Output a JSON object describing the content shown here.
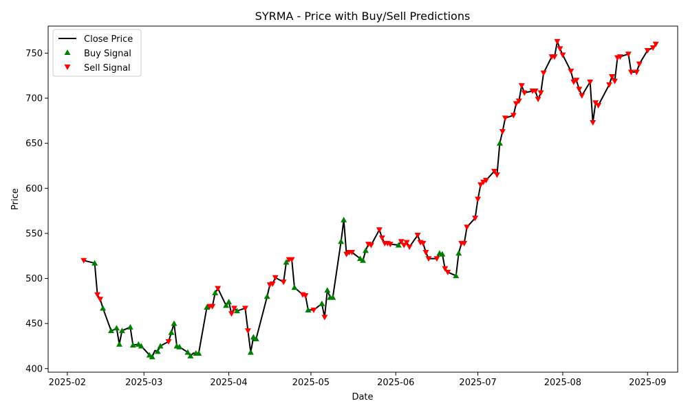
{
  "chart_data": {
    "type": "line",
    "title": "SYRMA - Price with Buy/Sell Predictions",
    "xlabel": "Date",
    "ylabel": "Price",
    "x_ticks": [
      "2025-02",
      "2025-03",
      "2025-04",
      "2025-05",
      "2025-06",
      "2025-07",
      "2025-08",
      "2025-09"
    ],
    "y_ticks": [
      400,
      450,
      500,
      550,
      600,
      650,
      700,
      750
    ],
    "xlim": [
      "2025-01-25",
      "2025-09-12"
    ],
    "ylim": [
      396,
      780
    ],
    "grid": false,
    "legend_position": "upper-left",
    "legend": {
      "close": "Close Price",
      "buy": "Buy Signal",
      "sell": "Sell Signal"
    },
    "colors": {
      "close": "#000000",
      "buy": "#008000",
      "sell": "#ff0000"
    },
    "series": [
      {
        "name": "Close Price",
        "points": [
          [
            "2025-02-07",
            520
          ],
          [
            "2025-02-11",
            517
          ],
          [
            "2025-02-12",
            482
          ],
          [
            "2025-02-13",
            477
          ],
          [
            "2025-02-14",
            467
          ],
          [
            "2025-02-17",
            442
          ],
          [
            "2025-02-18",
            443
          ],
          [
            "2025-02-19",
            445
          ],
          [
            "2025-02-20",
            427
          ],
          [
            "2025-02-21",
            442
          ],
          [
            "2025-02-24",
            446
          ],
          [
            "2025-02-25",
            426
          ],
          [
            "2025-02-27",
            427
          ],
          [
            "2025-02-28",
            425
          ],
          [
            "2025-03-03",
            415
          ],
          [
            "2025-03-04",
            413
          ],
          [
            "2025-03-05",
            420
          ],
          [
            "2025-03-06",
            419
          ],
          [
            "2025-03-07",
            425
          ],
          [
            "2025-03-10",
            430
          ],
          [
            "2025-03-11",
            440
          ],
          [
            "2025-03-12",
            450
          ],
          [
            "2025-03-13",
            425
          ],
          [
            "2025-03-14",
            424
          ],
          [
            "2025-03-17",
            418
          ],
          [
            "2025-03-18",
            414
          ],
          [
            "2025-03-19",
            417
          ],
          [
            "2025-03-20",
            417
          ],
          [
            "2025-03-21",
            417
          ],
          [
            "2025-03-24",
            468
          ],
          [
            "2025-03-25",
            469
          ],
          [
            "2025-03-26",
            469
          ],
          [
            "2025-03-27",
            484
          ],
          [
            "2025-03-28",
            489
          ],
          [
            "2025-03-31",
            470
          ],
          [
            "2025-04-01",
            474
          ],
          [
            "2025-04-02",
            461
          ],
          [
            "2025-04-03",
            467
          ],
          [
            "2025-04-04",
            464
          ],
          [
            "2025-04-07",
            467
          ],
          [
            "2025-04-08",
            442
          ],
          [
            "2025-04-09",
            418
          ],
          [
            "2025-04-10",
            435
          ],
          [
            "2025-04-11",
            433
          ],
          [
            "2025-04-15",
            480
          ],
          [
            "2025-04-16",
            493
          ],
          [
            "2025-04-17",
            494
          ],
          [
            "2025-04-18",
            501
          ],
          [
            "2025-04-21",
            496
          ],
          [
            "2025-04-22",
            518
          ],
          [
            "2025-04-23",
            521
          ],
          [
            "2025-04-24",
            521
          ],
          [
            "2025-04-25",
            490
          ],
          [
            "2025-04-28",
            482
          ],
          [
            "2025-04-29",
            481
          ],
          [
            "2025-04-30",
            465
          ],
          [
            "2025-05-02",
            465
          ],
          [
            "2025-05-05",
            472
          ],
          [
            "2025-05-06",
            457
          ],
          [
            "2025-05-07",
            487
          ],
          [
            "2025-05-08",
            479
          ],
          [
            "2025-05-09",
            479
          ],
          [
            "2025-05-12",
            541
          ],
          [
            "2025-05-13",
            565
          ],
          [
            "2025-05-14",
            527
          ],
          [
            "2025-05-15",
            529
          ],
          [
            "2025-05-16",
            529
          ],
          [
            "2025-05-19",
            522
          ],
          [
            "2025-05-20",
            520
          ],
          [
            "2025-05-21",
            531
          ],
          [
            "2025-05-22",
            538
          ],
          [
            "2025-05-23",
            537
          ],
          [
            "2025-05-26",
            554
          ],
          [
            "2025-05-27",
            545
          ],
          [
            "2025-05-28",
            539
          ],
          [
            "2025-05-29",
            539
          ],
          [
            "2025-05-30",
            538
          ],
          [
            "2025-06-02",
            537
          ],
          [
            "2025-06-03",
            541
          ],
          [
            "2025-06-04",
            537
          ],
          [
            "2025-06-05",
            540
          ],
          [
            "2025-06-06",
            535
          ],
          [
            "2025-06-09",
            548
          ],
          [
            "2025-06-10",
            540
          ],
          [
            "2025-06-11",
            539
          ],
          [
            "2025-06-12",
            529
          ],
          [
            "2025-06-13",
            522
          ],
          [
            "2025-06-16",
            522
          ],
          [
            "2025-06-17",
            528
          ],
          [
            "2025-06-18",
            527
          ],
          [
            "2025-06-19",
            511
          ],
          [
            "2025-06-20",
            507
          ],
          [
            "2025-06-23",
            503
          ],
          [
            "2025-06-24",
            528
          ],
          [
            "2025-06-25",
            539
          ],
          [
            "2025-06-26",
            539
          ],
          [
            "2025-06-27",
            557
          ],
          [
            "2025-06-30",
            567
          ],
          [
            "2025-07-01",
            588
          ],
          [
            "2025-07-02",
            604
          ],
          [
            "2025-07-03",
            607
          ],
          [
            "2025-07-04",
            609
          ],
          [
            "2025-07-07",
            619
          ],
          [
            "2025-07-08",
            615
          ],
          [
            "2025-07-09",
            650
          ],
          [
            "2025-07-10",
            663
          ],
          [
            "2025-07-11",
            678
          ],
          [
            "2025-07-14",
            681
          ],
          [
            "2025-07-15",
            694
          ],
          [
            "2025-07-16",
            697
          ],
          [
            "2025-07-17",
            714
          ],
          [
            "2025-07-18",
            706
          ],
          [
            "2025-07-21",
            708
          ],
          [
            "2025-07-22",
            708
          ],
          [
            "2025-07-23",
            699
          ],
          [
            "2025-07-24",
            706
          ],
          [
            "2025-07-25",
            728
          ],
          [
            "2025-07-28",
            746
          ],
          [
            "2025-07-29",
            746
          ],
          [
            "2025-07-30",
            763
          ],
          [
            "2025-07-31",
            755
          ],
          [
            "2025-08-01",
            748
          ],
          [
            "2025-08-04",
            730
          ],
          [
            "2025-08-05",
            718
          ],
          [
            "2025-08-06",
            720
          ],
          [
            "2025-08-07",
            710
          ],
          [
            "2025-08-08",
            703
          ],
          [
            "2025-08-11",
            718
          ],
          [
            "2025-08-12",
            673
          ],
          [
            "2025-08-13",
            695
          ],
          [
            "2025-08-14",
            692
          ],
          [
            "2025-08-18",
            715
          ],
          [
            "2025-08-19",
            724
          ],
          [
            "2025-08-20",
            719
          ],
          [
            "2025-08-21",
            745
          ],
          [
            "2025-08-22",
            746
          ],
          [
            "2025-08-25",
            749
          ],
          [
            "2025-08-26",
            729
          ],
          [
            "2025-08-28",
            729
          ],
          [
            "2025-08-29",
            738
          ],
          [
            "2025-09-01",
            753
          ],
          [
            "2025-09-03",
            756
          ],
          [
            "2025-09-04",
            760
          ]
        ]
      }
    ],
    "buy_signals": [
      [
        "2025-02-11",
        517
      ],
      [
        "2025-02-14",
        467
      ],
      [
        "2025-02-17",
        442
      ],
      [
        "2025-02-19",
        445
      ],
      [
        "2025-02-20",
        427
      ],
      [
        "2025-02-21",
        442
      ],
      [
        "2025-02-24",
        446
      ],
      [
        "2025-02-25",
        426
      ],
      [
        "2025-02-27",
        427
      ],
      [
        "2025-02-28",
        425
      ],
      [
        "2025-03-03",
        415
      ],
      [
        "2025-03-04",
        413
      ],
      [
        "2025-03-06",
        419
      ],
      [
        "2025-03-07",
        425
      ],
      [
        "2025-03-11",
        440
      ],
      [
        "2025-03-12",
        450
      ],
      [
        "2025-03-13",
        425
      ],
      [
        "2025-03-14",
        424
      ],
      [
        "2025-03-17",
        418
      ],
      [
        "2025-03-18",
        414
      ],
      [
        "2025-03-20",
        417
      ],
      [
        "2025-03-21",
        417
      ],
      [
        "2025-03-24",
        468
      ],
      [
        "2025-03-27",
        484
      ],
      [
        "2025-03-31",
        470
      ],
      [
        "2025-04-01",
        474
      ],
      [
        "2025-04-04",
        464
      ],
      [
        "2025-04-09",
        418
      ],
      [
        "2025-04-10",
        435
      ],
      [
        "2025-04-11",
        433
      ],
      [
        "2025-04-15",
        480
      ],
      [
        "2025-04-22",
        518
      ],
      [
        "2025-04-25",
        490
      ],
      [
        "2025-04-30",
        465
      ],
      [
        "2025-05-05",
        472
      ],
      [
        "2025-05-07",
        487
      ],
      [
        "2025-05-08",
        479
      ],
      [
        "2025-05-09",
        479
      ],
      [
        "2025-05-12",
        541
      ],
      [
        "2025-05-13",
        565
      ],
      [
        "2025-05-19",
        522
      ],
      [
        "2025-05-20",
        520
      ],
      [
        "2025-05-21",
        531
      ],
      [
        "2025-06-02",
        537
      ],
      [
        "2025-06-17",
        528
      ],
      [
        "2025-06-18",
        527
      ],
      [
        "2025-06-23",
        503
      ],
      [
        "2025-06-24",
        528
      ],
      [
        "2025-07-09",
        650
      ]
    ],
    "sell_signals": [
      [
        "2025-02-07",
        520
      ],
      [
        "2025-02-12",
        482
      ],
      [
        "2025-02-13",
        477
      ],
      [
        "2025-03-10",
        430
      ],
      [
        "2025-03-25",
        469
      ],
      [
        "2025-03-26",
        469
      ],
      [
        "2025-03-28",
        489
      ],
      [
        "2025-04-02",
        461
      ],
      [
        "2025-04-03",
        467
      ],
      [
        "2025-04-07",
        467
      ],
      [
        "2025-04-08",
        442
      ],
      [
        "2025-04-16",
        493
      ],
      [
        "2025-04-17",
        494
      ],
      [
        "2025-04-18",
        501
      ],
      [
        "2025-04-21",
        496
      ],
      [
        "2025-04-23",
        521
      ],
      [
        "2025-04-24",
        521
      ],
      [
        "2025-04-28",
        482
      ],
      [
        "2025-04-29",
        481
      ],
      [
        "2025-05-02",
        465
      ],
      [
        "2025-05-06",
        457
      ],
      [
        "2025-05-14",
        527
      ],
      [
        "2025-05-15",
        529
      ],
      [
        "2025-05-16",
        529
      ],
      [
        "2025-05-22",
        538
      ],
      [
        "2025-05-23",
        537
      ],
      [
        "2025-05-26",
        554
      ],
      [
        "2025-05-27",
        545
      ],
      [
        "2025-05-28",
        539
      ],
      [
        "2025-05-29",
        539
      ],
      [
        "2025-05-30",
        538
      ],
      [
        "2025-06-03",
        541
      ],
      [
        "2025-06-04",
        537
      ],
      [
        "2025-06-05",
        540
      ],
      [
        "2025-06-06",
        535
      ],
      [
        "2025-06-09",
        548
      ],
      [
        "2025-06-10",
        540
      ],
      [
        "2025-06-11",
        539
      ],
      [
        "2025-06-12",
        529
      ],
      [
        "2025-06-13",
        522
      ],
      [
        "2025-06-16",
        522
      ],
      [
        "2025-06-19",
        511
      ],
      [
        "2025-06-20",
        507
      ],
      [
        "2025-06-25",
        539
      ],
      [
        "2025-06-26",
        539
      ],
      [
        "2025-06-27",
        557
      ],
      [
        "2025-06-30",
        567
      ],
      [
        "2025-07-01",
        588
      ],
      [
        "2025-07-02",
        604
      ],
      [
        "2025-07-03",
        607
      ],
      [
        "2025-07-04",
        609
      ],
      [
        "2025-07-07",
        619
      ],
      [
        "2025-07-08",
        615
      ],
      [
        "2025-07-10",
        663
      ],
      [
        "2025-07-11",
        678
      ],
      [
        "2025-07-14",
        681
      ],
      [
        "2025-07-15",
        694
      ],
      [
        "2025-07-16",
        697
      ],
      [
        "2025-07-17",
        714
      ],
      [
        "2025-07-18",
        706
      ],
      [
        "2025-07-21",
        708
      ],
      [
        "2025-07-22",
        708
      ],
      [
        "2025-07-23",
        699
      ],
      [
        "2025-07-24",
        706
      ],
      [
        "2025-07-25",
        728
      ],
      [
        "2025-07-28",
        746
      ],
      [
        "2025-07-29",
        746
      ],
      [
        "2025-07-30",
        763
      ],
      [
        "2025-07-31",
        755
      ],
      [
        "2025-08-01",
        748
      ],
      [
        "2025-08-04",
        730
      ],
      [
        "2025-08-05",
        718
      ],
      [
        "2025-08-06",
        720
      ],
      [
        "2025-08-07",
        710
      ],
      [
        "2025-08-08",
        703
      ],
      [
        "2025-08-11",
        718
      ],
      [
        "2025-08-12",
        673
      ],
      [
        "2025-08-13",
        695
      ],
      [
        "2025-08-14",
        692
      ],
      [
        "2025-08-18",
        715
      ],
      [
        "2025-08-19",
        724
      ],
      [
        "2025-08-20",
        719
      ],
      [
        "2025-08-21",
        745
      ],
      [
        "2025-08-22",
        746
      ],
      [
        "2025-08-25",
        749
      ],
      [
        "2025-08-26",
        729
      ],
      [
        "2025-08-28",
        729
      ],
      [
        "2025-08-29",
        738
      ],
      [
        "2025-09-01",
        753
      ],
      [
        "2025-09-03",
        756
      ],
      [
        "2025-09-04",
        760
      ]
    ]
  }
}
